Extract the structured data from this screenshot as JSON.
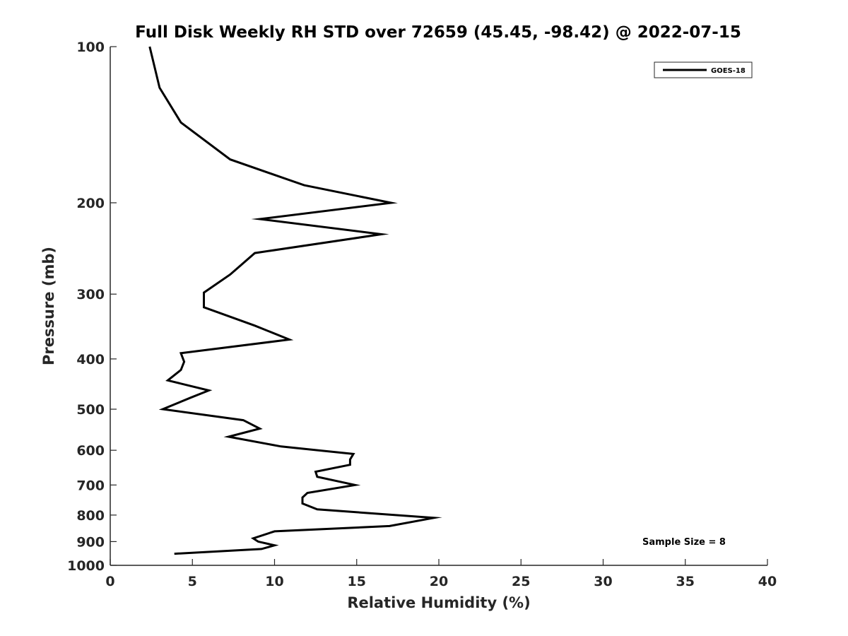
{
  "chart_data": {
    "type": "line",
    "title": "Full Disk Weekly RH STD over 72659 (45.45, -98.42) @ 2022-07-15",
    "xlabel": "Relative Humidity (%)",
    "ylabel": "Pressure (mb)",
    "xlim": [
      0,
      40
    ],
    "ylim": [
      100,
      1000
    ],
    "y_scale": "log",
    "y_reversed": true,
    "x_ticks": [
      0,
      5,
      10,
      15,
      20,
      25,
      30,
      35,
      40
    ],
    "y_ticks": [
      100,
      200,
      300,
      400,
      500,
      600,
      700,
      800,
      900,
      1000
    ],
    "grid": false,
    "legend_position": "top-right",
    "series": [
      {
        "name": "GOES-18",
        "color": "#000000",
        "points": [
          [
            2.4,
            100
          ],
          [
            3.0,
            120
          ],
          [
            4.3,
            140
          ],
          [
            7.3,
            165
          ],
          [
            11.8,
            185
          ],
          [
            17.1,
            200
          ],
          [
            9.1,
            215
          ],
          [
            16.5,
            230
          ],
          [
            8.8,
            250
          ],
          [
            7.3,
            275
          ],
          [
            5.7,
            298
          ],
          [
            5.7,
            318
          ],
          [
            8.8,
            345
          ],
          [
            10.9,
            367
          ],
          [
            4.3,
            390
          ],
          [
            4.5,
            405
          ],
          [
            4.3,
            420
          ],
          [
            3.5,
            440
          ],
          [
            6.0,
            460
          ],
          [
            4.9,
            475
          ],
          [
            3.2,
            500
          ],
          [
            8.1,
            525
          ],
          [
            9.1,
            545
          ],
          [
            7.2,
            565
          ],
          [
            10.4,
            590
          ],
          [
            14.8,
            610
          ],
          [
            14.6,
            625
          ],
          [
            14.6,
            640
          ],
          [
            12.5,
            660
          ],
          [
            12.6,
            675
          ],
          [
            14.9,
            700
          ],
          [
            12.0,
            725
          ],
          [
            11.7,
            740
          ],
          [
            11.7,
            760
          ],
          [
            12.6,
            780
          ],
          [
            19.7,
            810
          ],
          [
            17.0,
            840
          ],
          [
            10.0,
            860
          ],
          [
            8.7,
            887
          ],
          [
            9.0,
            900
          ],
          [
            10.0,
            915
          ],
          [
            9.2,
            930
          ],
          [
            3.9,
            950
          ]
        ]
      }
    ],
    "annotations": [
      {
        "text": "Sample Size = 8"
      }
    ]
  }
}
